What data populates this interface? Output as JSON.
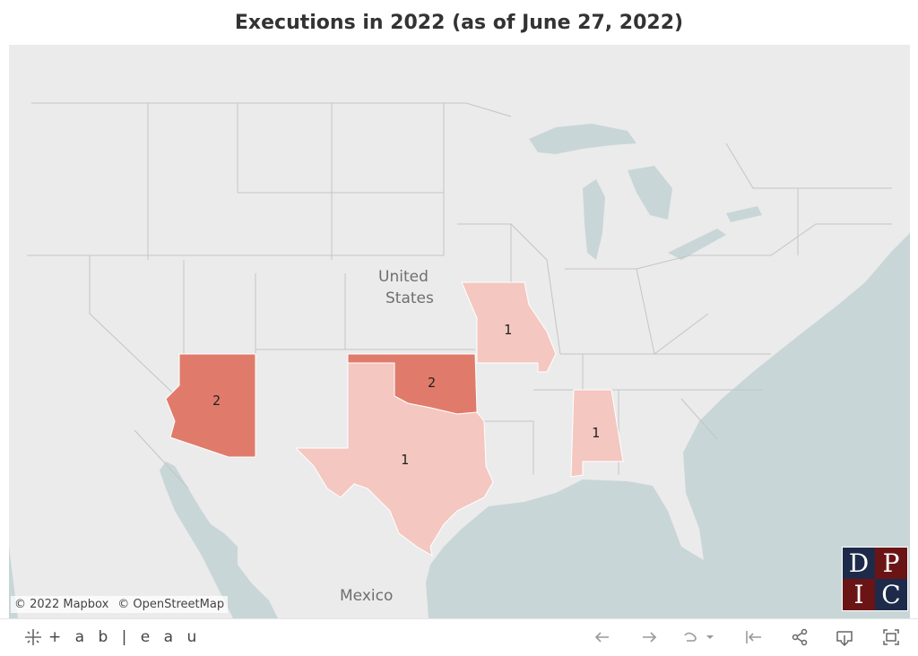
{
  "title": "Executions in 2022 (as of June 27, 2022)",
  "map": {
    "place_labels": {
      "country_us_line1": "United",
      "country_us_line2": "States",
      "country_mx": "Mexico"
    },
    "color_scale": {
      "low": "#f4c7c0",
      "high": "#e07b6b",
      "ocean": "#c9d6d8",
      "land": "#ebebeb"
    },
    "states": [
      {
        "name": "Arizona",
        "executions": 2
      },
      {
        "name": "Oklahoma",
        "executions": 2
      },
      {
        "name": "Texas",
        "executions": 1
      },
      {
        "name": "Missouri",
        "executions": 1
      },
      {
        "name": "Alabama",
        "executions": 1
      }
    ]
  },
  "attribution": {
    "mapbox": "© 2022 Mapbox",
    "osm": "© OpenStreetMap"
  },
  "logo": {
    "letters": [
      "D",
      "P",
      "I",
      "C"
    ]
  },
  "toolbar": {
    "brand": "+ a b | e a u",
    "icons": [
      "undo-icon",
      "redo-icon",
      "revert-icon",
      "reset-icon",
      "share-icon",
      "download-icon",
      "fullscreen-icon"
    ]
  }
}
